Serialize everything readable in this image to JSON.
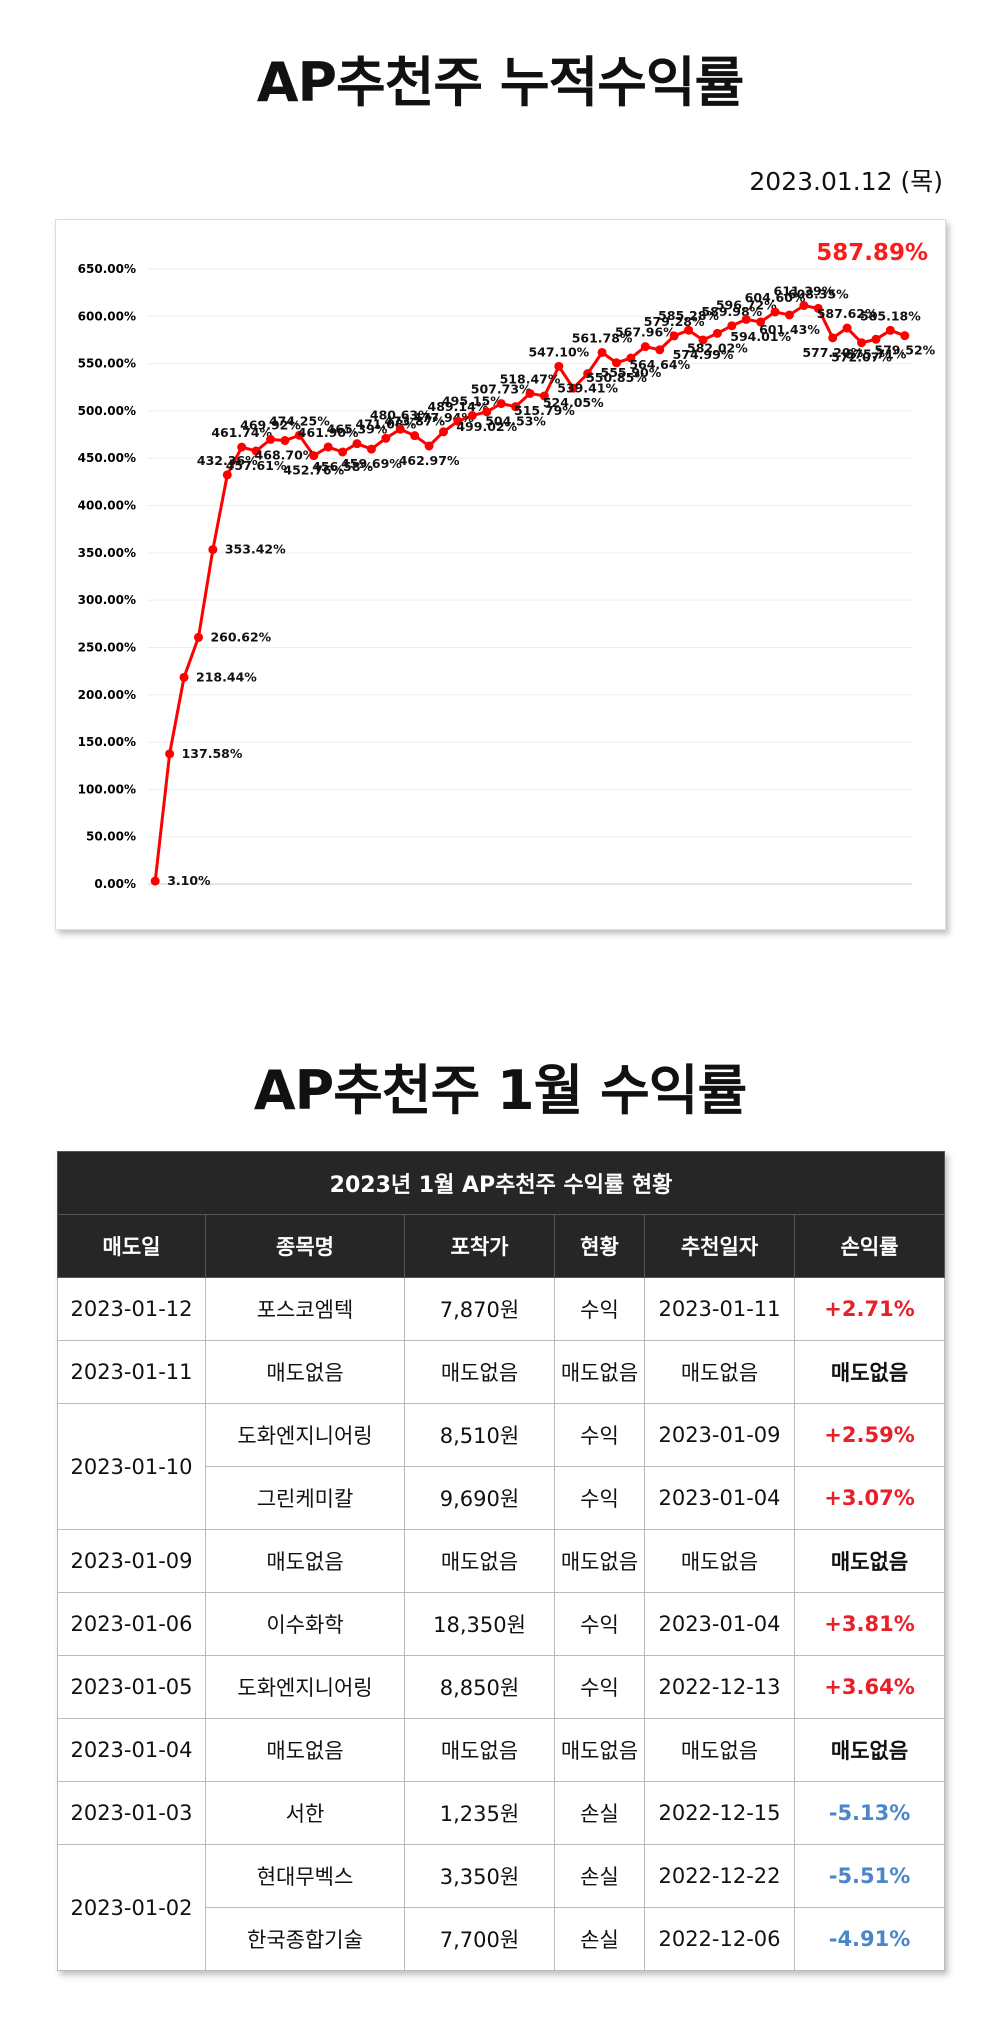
{
  "header": {
    "title": "AP추천주 누적수익률",
    "date": "2023.01.12 (목)"
  },
  "chart_data": {
    "type": "line",
    "annotation": "587.89%",
    "annotation_color": "#ff1a1a",
    "categories": [
      null,
      null,
      null,
      null,
      null,
      null,
      null,
      null,
      null,
      null,
      null,
      null,
      null,
      null,
      null,
      null,
      null,
      null,
      null,
      null,
      null,
      null,
      null,
      null,
      null,
      null,
      null,
      null,
      null,
      null,
      null,
      null,
      null,
      null,
      null,
      null,
      null,
      null,
      null,
      null,
      null,
      null,
      null,
      null,
      null,
      null,
      null,
      null,
      null,
      null,
      null,
      null,
      null
    ],
    "series": [
      {
        "name": null,
        "color": "#ff0000",
        "values": [
          3.1,
          137.58,
          218.44,
          260.62,
          353.42,
          432.36,
          461.74,
          457.61,
          469.92,
          468.7,
          474.25,
          452.76,
          461.9,
          456.58,
          465.39,
          459.69,
          471.08,
          480.63,
          473.87,
          462.97,
          477.94,
          489.14,
          495.15,
          499.02,
          507.73,
          504.53,
          518.47,
          515.79,
          547.1,
          524.05,
          539.41,
          561.78,
          550.85,
          555.9,
          567.96,
          564.64,
          579.28,
          585.28,
          574.99,
          582.02,
          589.98,
          596.72,
          594.01,
          604.6,
          601.43,
          611.39,
          608.35,
          577.2,
          587.62,
          572.07,
          575.71,
          585.18,
          579.52
        ],
        "value_labels": [
          "3.10%",
          "137.58%",
          "218.44%",
          "260.62%",
          "353.42%",
          "432.36%",
          "461.74%",
          "457.61%",
          "469.92%",
          "468.70%",
          "474.25%",
          "452.76%",
          "461.90%",
          "456.58%",
          "465.39%",
          "459.69%",
          "471.08%",
          "480.63%",
          "473.87%",
          "462.97%",
          "477.94%",
          "489.14%",
          "495.15%",
          "499.02%",
          "507.73%",
          "504.53%",
          "518.47%",
          "515.79%",
          "547.10%",
          "524.05%",
          "539.41%",
          "561.78%",
          "550.85%",
          "555.90%",
          "567.96%",
          "564.64%",
          "579.28%",
          "585.28%",
          "574.99%",
          "582.02%",
          "589.98%",
          "596.72%",
          "594.01%",
          "604.60%",
          "601.43%",
          "611.39%",
          "608.35%",
          "577.20%",
          "587.62%",
          "572.07%",
          "575.71%",
          "585.18%",
          "579.52%"
        ]
      }
    ],
    "ylim": [
      0,
      650
    ],
    "yticks": [
      {
        "value": 0,
        "label": "0.00%"
      },
      {
        "value": 50,
        "label": "50.00%"
      },
      {
        "value": 100,
        "label": "100.00%"
      },
      {
        "value": 150,
        "label": "150.00%"
      },
      {
        "value": 200,
        "label": "200.00%"
      },
      {
        "value": 250,
        "label": "250.00%"
      },
      {
        "value": 300,
        "label": "300.00%"
      },
      {
        "value": 350,
        "label": "350.00%"
      },
      {
        "value": 400,
        "label": "400.00%"
      },
      {
        "value": 450,
        "label": "450.00%"
      },
      {
        "value": 500,
        "label": "500.00%"
      },
      {
        "value": 550,
        "label": "550.00%"
      },
      {
        "value": 600,
        "label": "600.00%"
      },
      {
        "value": 650,
        "label": "650.00%"
      }
    ],
    "grid": true
  },
  "section": {
    "title": "AP추천주 1월 수익률"
  },
  "table": {
    "title": "2023년 1월 AP추천주 수익률 현황",
    "headers": [
      "매도일",
      "종목명",
      "포착가",
      "현황",
      "추천일자",
      "손익률"
    ],
    "gain_color": "#e8202a",
    "loss_color": "#4a86c8",
    "groups": [
      {
        "date": "2023-01-12",
        "items": [
          [
            "포스코엠텍",
            "7,870원",
            "수익",
            "2023-01-11",
            "+2.71%"
          ]
        ]
      },
      {
        "date": "2023-01-11",
        "items": [
          [
            "매도없음",
            "매도없음",
            "매도없음",
            "매도없음",
            "매도없음"
          ]
        ]
      },
      {
        "date": "2023-01-10",
        "items": [
          [
            "도화엔지니어링",
            "8,510원",
            "수익",
            "2023-01-09",
            "+2.59%"
          ],
          [
            "그린케미칼",
            "9,690원",
            "수익",
            "2023-01-04",
            "+3.07%"
          ]
        ]
      },
      {
        "date": "2023-01-09",
        "items": [
          [
            "매도없음",
            "매도없음",
            "매도없음",
            "매도없음",
            "매도없음"
          ]
        ]
      },
      {
        "date": "2023-01-06",
        "items": [
          [
            "이수화학",
            "18,350원",
            "수익",
            "2023-01-04",
            "+3.81%"
          ]
        ]
      },
      {
        "date": "2023-01-05",
        "items": [
          [
            "도화엔지니어링",
            "8,850원",
            "수익",
            "2022-12-13",
            "+3.64%"
          ]
        ]
      },
      {
        "date": "2023-01-04",
        "items": [
          [
            "매도없음",
            "매도없음",
            "매도없음",
            "매도없음",
            "매도없음"
          ]
        ]
      },
      {
        "date": "2023-01-03",
        "items": [
          [
            "서한",
            "1,235원",
            "손실",
            "2022-12-15",
            "-5.13%"
          ]
        ]
      },
      {
        "date": "2023-01-02",
        "items": [
          [
            "현대무벡스",
            "3,350원",
            "손실",
            "2022-12-22",
            "-5.51%"
          ],
          [
            "한국종합기술",
            "7,700원",
            "손실",
            "2022-12-06",
            "-4.91%"
          ]
        ]
      }
    ]
  }
}
